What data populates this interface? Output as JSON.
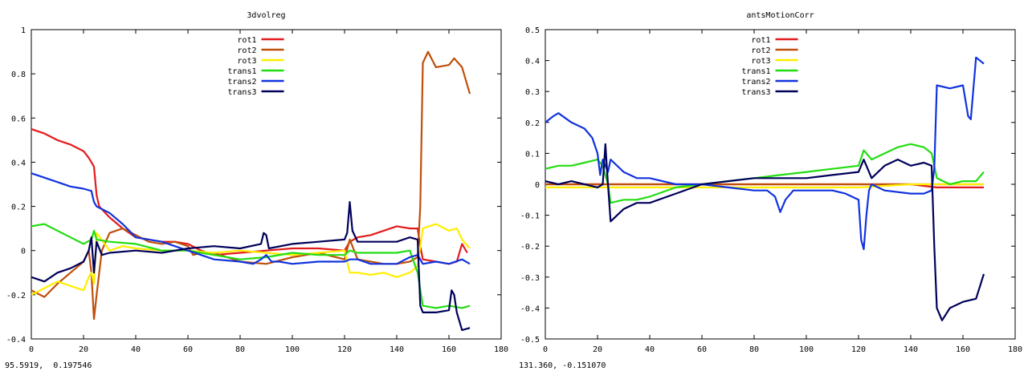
{
  "panels": [
    {
      "coord_readout": "95.5919,  0.197546"
    },
    {
      "coord_readout": "131.360, -0.151070"
    }
  ],
  "chart_data": [
    {
      "type": "line",
      "title": "3dvolreg",
      "xlabel": "",
      "ylabel": "",
      "xlim": [
        0,
        180
      ],
      "ylim": [
        -0.4,
        1
      ],
      "xticks": [
        0,
        20,
        40,
        60,
        80,
        100,
        120,
        140,
        160,
        180
      ],
      "yticks": [
        -0.4,
        -0.2,
        0,
        0.2,
        0.4,
        0.6,
        0.8,
        1
      ],
      "ytick_labels": [
        "-0.4",
        "-0.2",
        "0",
        "0.2",
        "0.4",
        "0.6",
        "0.8",
        "1"
      ],
      "grid": false,
      "legend_position": "top-center",
      "series": [
        {
          "name": "rot1",
          "color": "#e41a1c",
          "x": [
            0,
            5,
            10,
            15,
            20,
            22,
            24,
            25,
            26,
            30,
            35,
            40,
            45,
            50,
            55,
            60,
            65,
            70,
            80,
            90,
            100,
            110,
            120,
            122,
            125,
            130,
            135,
            140,
            145,
            148,
            149,
            150,
            155,
            160,
            163,
            165,
            167
          ],
          "y": [
            0.55,
            0.53,
            0.5,
            0.48,
            0.45,
            0.42,
            0.38,
            0.25,
            0.2,
            0.15,
            0.1,
            0.06,
            0.05,
            0.04,
            0.04,
            0.03,
            0.0,
            -0.02,
            -0.01,
            0.0,
            0.01,
            0.01,
            0.0,
            0.04,
            0.06,
            0.07,
            0.09,
            0.11,
            0.1,
            0.1,
            0.02,
            -0.04,
            -0.05,
            -0.06,
            -0.05,
            0.03,
            -0.01
          ]
        },
        {
          "name": "rot2",
          "color": "#bf4f0a",
          "x": [
            0,
            5,
            10,
            15,
            20,
            22,
            23,
            24,
            25,
            27,
            30,
            35,
            40,
            45,
            50,
            55,
            60,
            62,
            65,
            70,
            80,
            90,
            100,
            110,
            120,
            122,
            125,
            130,
            135,
            140,
            145,
            148,
            149,
            150,
            152,
            155,
            160,
            162,
            165,
            168
          ],
          "y": [
            -0.18,
            -0.21,
            -0.15,
            -0.1,
            -0.05,
            0.0,
            -0.1,
            -0.31,
            -0.2,
            0.0,
            0.08,
            0.1,
            0.07,
            0.04,
            0.03,
            0.04,
            0.02,
            -0.02,
            -0.01,
            -0.01,
            -0.05,
            -0.06,
            -0.03,
            -0.01,
            -0.04,
            0.05,
            -0.04,
            -0.05,
            -0.06,
            -0.06,
            -0.05,
            -0.03,
            0.2,
            0.85,
            0.9,
            0.83,
            0.84,
            0.87,
            0.83,
            0.71
          ]
        },
        {
          "name": "rot3",
          "color": "#ffee00",
          "x": [
            0,
            5,
            10,
            15,
            20,
            22,
            23,
            24,
            25,
            30,
            35,
            40,
            50,
            60,
            70,
            80,
            90,
            100,
            110,
            120,
            122,
            125,
            130,
            135,
            140,
            145,
            148,
            150,
            155,
            160,
            163,
            165,
            168
          ],
          "y": [
            -0.2,
            -0.17,
            -0.14,
            -0.16,
            -0.18,
            -0.12,
            -0.1,
            -0.15,
            0.08,
            0.0,
            0.02,
            0.01,
            0.0,
            0.0,
            -0.01,
            0.0,
            -0.01,
            -0.02,
            -0.01,
            0.0,
            -0.1,
            -0.1,
            -0.11,
            -0.1,
            -0.12,
            -0.1,
            -0.07,
            0.1,
            0.12,
            0.09,
            0.1,
            0.05,
            0.01
          ]
        },
        {
          "name": "trans1",
          "color": "#22dd11",
          "x": [
            0,
            5,
            10,
            15,
            20,
            23,
            24,
            25,
            30,
            40,
            50,
            60,
            70,
            80,
            90,
            100,
            110,
            120,
            122,
            125,
            130,
            140,
            145,
            148,
            150,
            155,
            160,
            165,
            168
          ],
          "y": [
            0.11,
            0.12,
            0.09,
            0.06,
            0.03,
            0.05,
            0.09,
            0.05,
            0.04,
            0.03,
            0.0,
            0.0,
            -0.02,
            -0.04,
            -0.03,
            -0.01,
            -0.02,
            -0.02,
            0.0,
            -0.01,
            -0.01,
            -0.01,
            0.0,
            -0.1,
            -0.25,
            -0.26,
            -0.25,
            -0.26,
            -0.25
          ]
        },
        {
          "name": "trans2",
          "color": "#1133dd",
          "x": [
            0,
            5,
            10,
            15,
            20,
            23,
            24,
            25,
            30,
            35,
            40,
            50,
            60,
            65,
            70,
            80,
            85,
            88,
            90,
            92,
            95,
            100,
            110,
            120,
            122,
            125,
            130,
            140,
            145,
            148,
            150,
            155,
            160,
            165,
            168
          ],
          "y": [
            0.35,
            0.33,
            0.31,
            0.29,
            0.28,
            0.27,
            0.22,
            0.2,
            0.17,
            0.12,
            0.06,
            0.04,
            0.0,
            -0.02,
            -0.04,
            -0.05,
            -0.06,
            -0.04,
            -0.02,
            -0.05,
            -0.05,
            -0.06,
            -0.05,
            -0.05,
            -0.04,
            -0.04,
            -0.06,
            -0.06,
            -0.03,
            -0.02,
            -0.06,
            -0.05,
            -0.06,
            -0.04,
            -0.06
          ]
        },
        {
          "name": "trans3",
          "color": "#00005a",
          "x": [
            0,
            5,
            10,
            15,
            20,
            22,
            23,
            24,
            25,
            27,
            30,
            40,
            50,
            60,
            70,
            80,
            88,
            89,
            90,
            91,
            100,
            110,
            120,
            121,
            122,
            123,
            125,
            130,
            140,
            145,
            148,
            149,
            150,
            155,
            160,
            161,
            162,
            163,
            165,
            168
          ],
          "y": [
            -0.12,
            -0.14,
            -0.1,
            -0.08,
            -0.05,
            0.0,
            0.06,
            -0.1,
            0.04,
            -0.02,
            -0.01,
            0.0,
            -0.01,
            0.01,
            0.02,
            0.01,
            0.03,
            0.08,
            0.07,
            0.01,
            0.03,
            0.04,
            0.05,
            0.08,
            0.22,
            0.09,
            0.04,
            0.04,
            0.04,
            0.06,
            0.05,
            -0.25,
            -0.28,
            -0.28,
            -0.27,
            -0.18,
            -0.2,
            -0.28,
            -0.36,
            -0.35
          ]
        }
      ]
    },
    {
      "type": "line",
      "title": "antsMotionCorr",
      "xlabel": "",
      "ylabel": "",
      "xlim": [
        0,
        180
      ],
      "ylim": [
        -0.5,
        0.5
      ],
      "xticks": [
        0,
        20,
        40,
        60,
        80,
        100,
        120,
        140,
        160,
        180
      ],
      "yticks": [
        -0.5,
        -0.4,
        -0.3,
        -0.2,
        -0.1,
        0,
        0.1,
        0.2,
        0.3,
        0.4,
        0.5
      ],
      "ytick_labels": [
        "-0.5",
        "-0.4",
        "-0.3",
        "-0.2",
        "-0.1",
        "0",
        "0.1",
        "0.2",
        "0.3",
        "0.4",
        "0.5"
      ],
      "grid": false,
      "legend_position": "top-center",
      "series": [
        {
          "name": "rot1",
          "color": "#e41a1c",
          "x": [
            0,
            20,
            40,
            60,
            80,
            100,
            120,
            140,
            150,
            160,
            168
          ],
          "y": [
            0.0,
            0.0,
            0.0,
            0.0,
            0.0,
            0.0,
            0.0,
            0.0,
            -0.01,
            -0.01,
            -0.01
          ]
        },
        {
          "name": "rot2",
          "color": "#bf4f0a",
          "x": [
            0,
            20,
            40,
            60,
            80,
            100,
            120,
            140,
            150,
            160,
            168
          ],
          "y": [
            0.0,
            0.0,
            0.0,
            0.0,
            0.0,
            0.0,
            0.0,
            0.0,
            0.0,
            0.0,
            0.0
          ]
        },
        {
          "name": "rot3",
          "color": "#ffee00",
          "x": [
            0,
            20,
            40,
            60,
            80,
            100,
            120,
            140,
            150,
            160,
            168
          ],
          "y": [
            -0.01,
            -0.01,
            -0.01,
            -0.01,
            -0.01,
            -0.01,
            -0.01,
            0.0,
            0.0,
            0.0,
            0.0
          ]
        },
        {
          "name": "trans1",
          "color": "#22dd11",
          "x": [
            0,
            5,
            10,
            15,
            20,
            22,
            24,
            25,
            30,
            35,
            40,
            50,
            60,
            70,
            80,
            90,
            100,
            110,
            120,
            122,
            125,
            130,
            135,
            140,
            145,
            148,
            150,
            155,
            160,
            165,
            168
          ],
          "y": [
            0.05,
            0.06,
            0.06,
            0.07,
            0.08,
            0.06,
            0.0,
            -0.06,
            -0.05,
            -0.05,
            -0.04,
            -0.01,
            0.0,
            0.01,
            0.02,
            0.03,
            0.04,
            0.05,
            0.06,
            0.11,
            0.08,
            0.1,
            0.12,
            0.13,
            0.12,
            0.1,
            0.02,
            0.0,
            0.01,
            0.01,
            0.04
          ]
        },
        {
          "name": "trans2",
          "color": "#1133dd",
          "x": [
            0,
            3,
            5,
            10,
            15,
            18,
            20,
            21,
            22,
            23,
            24,
            25,
            30,
            35,
            40,
            50,
            60,
            70,
            80,
            85,
            88,
            90,
            92,
            95,
            100,
            110,
            115,
            120,
            121,
            122,
            123,
            124,
            125,
            130,
            140,
            145,
            148,
            149,
            150,
            155,
            160,
            162,
            163,
            165,
            168
          ],
          "y": [
            0.2,
            0.22,
            0.23,
            0.2,
            0.18,
            0.15,
            0.1,
            0.03,
            0.08,
            0.06,
            0.04,
            0.08,
            0.04,
            0.02,
            0.02,
            0.0,
            0.0,
            -0.01,
            -0.02,
            -0.02,
            -0.04,
            -0.09,
            -0.05,
            -0.02,
            -0.02,
            -0.02,
            -0.03,
            -0.05,
            -0.18,
            -0.21,
            -0.1,
            -0.02,
            0.0,
            -0.02,
            -0.03,
            -0.03,
            -0.02,
            0.05,
            0.32,
            0.31,
            0.32,
            0.22,
            0.21,
            0.41,
            0.39
          ]
        },
        {
          "name": "trans3",
          "color": "#00005a",
          "x": [
            0,
            5,
            10,
            15,
            20,
            22,
            23,
            24,
            25,
            30,
            35,
            40,
            50,
            60,
            70,
            80,
            90,
            100,
            110,
            120,
            122,
            125,
            130,
            135,
            140,
            145,
            148,
            149,
            150,
            152,
            155,
            160,
            165,
            168
          ],
          "y": [
            0.01,
            0.0,
            0.01,
            0.0,
            -0.01,
            0.0,
            0.13,
            0.0,
            -0.12,
            -0.08,
            -0.06,
            -0.06,
            -0.03,
            0.0,
            0.01,
            0.02,
            0.02,
            0.02,
            0.03,
            0.04,
            0.08,
            0.02,
            0.06,
            0.08,
            0.06,
            0.07,
            0.06,
            -0.2,
            -0.4,
            -0.44,
            -0.4,
            -0.38,
            -0.37,
            -0.29
          ]
        }
      ]
    }
  ]
}
